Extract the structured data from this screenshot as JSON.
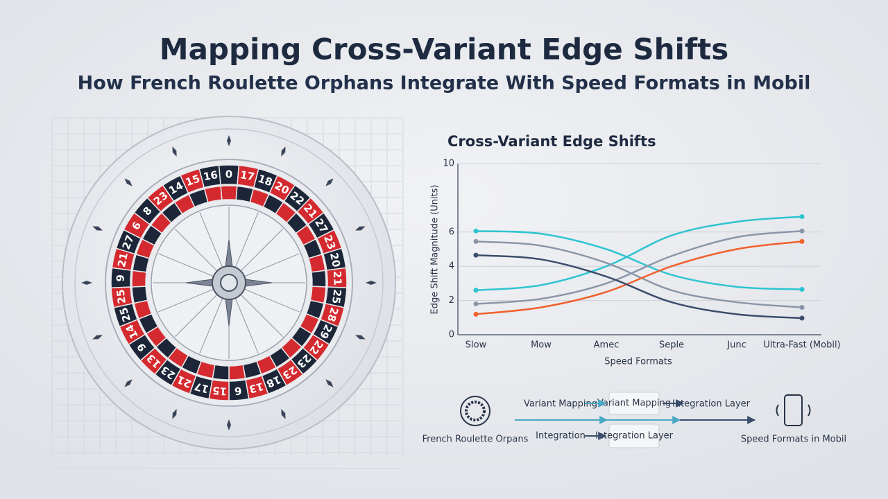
{
  "title": "Mapping Cross-Variant Edge Shifts",
  "subtitle": "How French Roulette Orphans Integrate With Speed Formats in Mobil",
  "wheel": {
    "numbers": [
      "0",
      "17",
      "18",
      "20",
      "22",
      "21",
      "27",
      "23",
      "20",
      "21",
      "25",
      "28",
      "29",
      "22",
      "23",
      "23",
      "18",
      "13",
      "6",
      "15",
      "17",
      "21",
      "23",
      "13",
      "9",
      "14",
      "25",
      "25",
      "9",
      "21",
      "27",
      "6",
      "8",
      "23",
      "14",
      "15",
      "16"
    ]
  },
  "chart_data": {
    "type": "line",
    "title": "Cross-Variant Edge Shifts",
    "y_label": "Edge Shift Magnitude (Units)",
    "x_label": "Speed Formats",
    "categories": [
      "Slow",
      "Mow",
      "Amec",
      "Seple",
      "Junc",
      "Ultra-Fast (Mobil)"
    ],
    "ylim": [
      0,
      10
    ],
    "yticks": [
      0,
      2,
      4,
      6,
      10
    ],
    "grid": true,
    "series": [
      {
        "color": "#2ec4d0",
        "values": [
          6.06,
          5.9,
          5.0,
          3.5,
          2.8,
          2.65
        ]
      },
      {
        "color": "#2ec4d0",
        "values": [
          2.6,
          2.9,
          4.0,
          5.8,
          6.6,
          6.9
        ]
      },
      {
        "color": "#8a96a8",
        "values": [
          5.45,
          5.2,
          4.2,
          2.6,
          1.9,
          1.6
        ]
      },
      {
        "color": "#8a96a8",
        "values": [
          1.8,
          2.1,
          3.0,
          4.6,
          5.7,
          6.06
        ]
      },
      {
        "color": "#f0612c",
        "values": [
          1.2,
          1.6,
          2.5,
          4.0,
          5.0,
          5.45
        ]
      },
      {
        "color": "#3b4d6b",
        "values": [
          4.65,
          4.4,
          3.4,
          1.9,
          1.2,
          0.97
        ]
      }
    ]
  },
  "flow": {
    "source": "French Roulette Orpans",
    "variant_label": "Variant Mapping",
    "variant_box": "Variant Mapping",
    "integration_label": "Integration",
    "integration_box": "Integration Layer",
    "layer_label": "Integration Layer",
    "target": "Speed Formats in Mobil"
  }
}
